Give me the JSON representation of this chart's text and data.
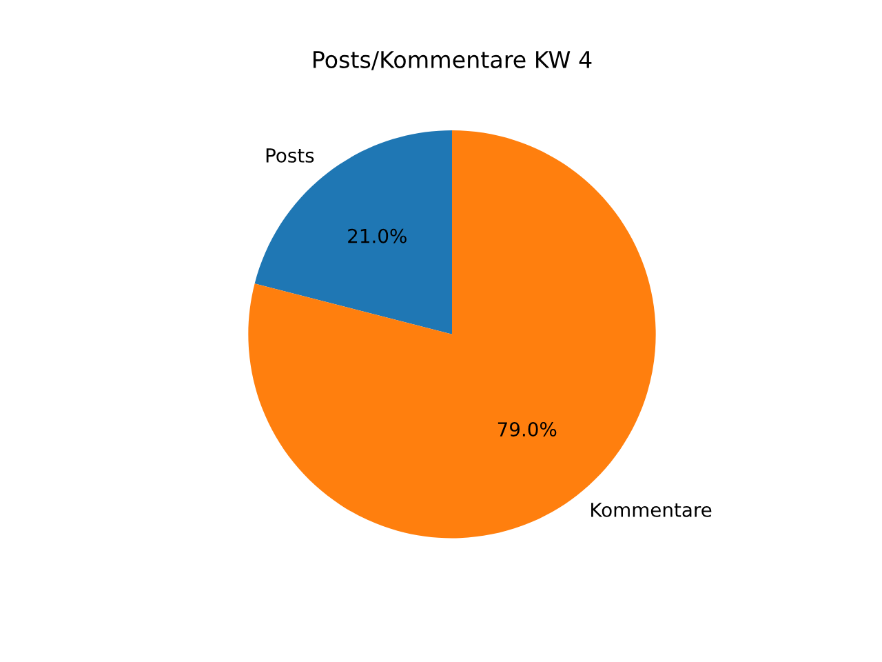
{
  "chart_data": {
    "type": "pie",
    "title": "Posts/Kommentare KW 4",
    "categories": [
      "Posts",
      "Kommentare"
    ],
    "values": [
      21.0,
      79.0
    ],
    "value_labels": [
      "21.0%",
      "79.0%"
    ],
    "colors": [
      "#1f77b4",
      "#ff7f0e"
    ]
  }
}
